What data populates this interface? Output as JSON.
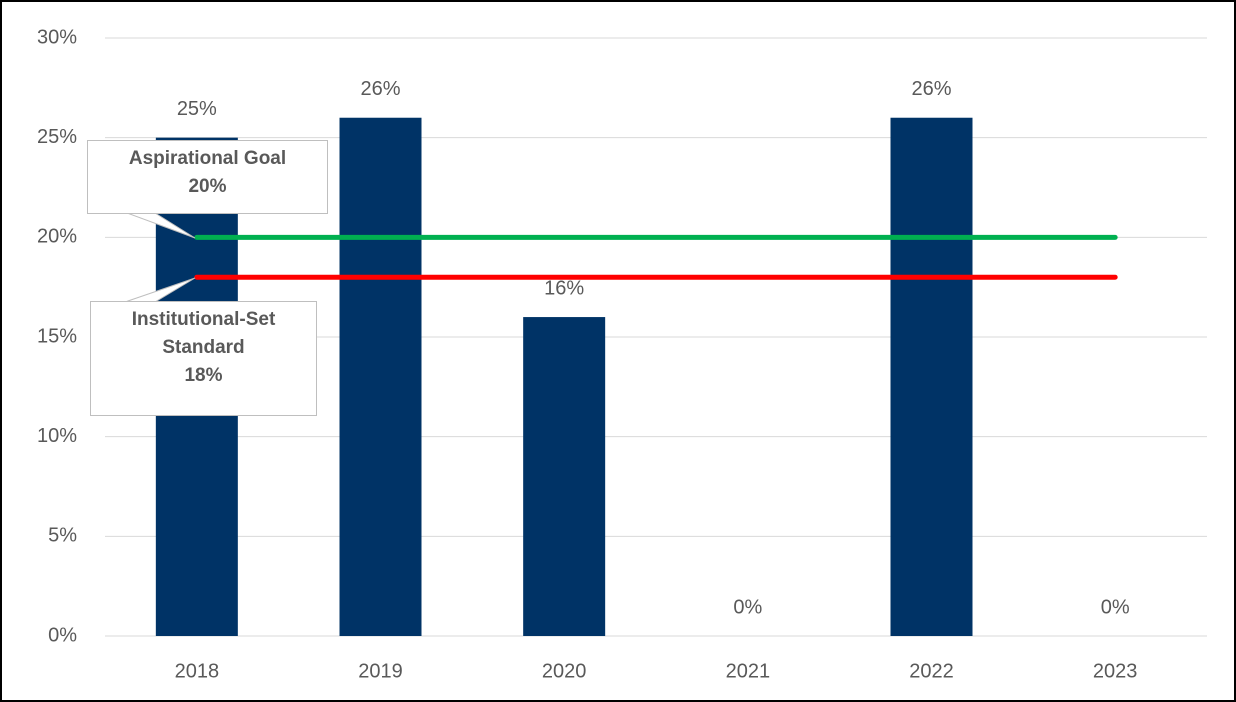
{
  "chart_data": {
    "type": "bar",
    "categories": [
      "2018",
      "2019",
      "2020",
      "2021",
      "2022",
      "2023"
    ],
    "values": [
      25,
      26,
      16,
      0,
      26,
      0
    ],
    "value_labels": [
      "25%",
      "26%",
      "16%",
      "0%",
      "26%",
      "0%"
    ],
    "color": "#003366",
    "ylim": [
      0,
      30
    ],
    "yticks": [
      {
        "value": 0,
        "label": "0%"
      },
      {
        "value": 5,
        "label": "5%"
      },
      {
        "value": 10,
        "label": "10%"
      },
      {
        "value": 15,
        "label": "15%"
      },
      {
        "value": 20,
        "label": "20%"
      },
      {
        "value": 25,
        "label": "25%"
      },
      {
        "value": 30,
        "label": "30%"
      }
    ],
    "grid": true,
    "reference_lines": [
      {
        "name": "Aspirational Goal",
        "value": 20,
        "value_label": "20%",
        "color": "#00b050"
      },
      {
        "name": "Institutional-Set Standard",
        "value": 18,
        "value_label": "18%",
        "color": "#ff0000"
      }
    ]
  }
}
